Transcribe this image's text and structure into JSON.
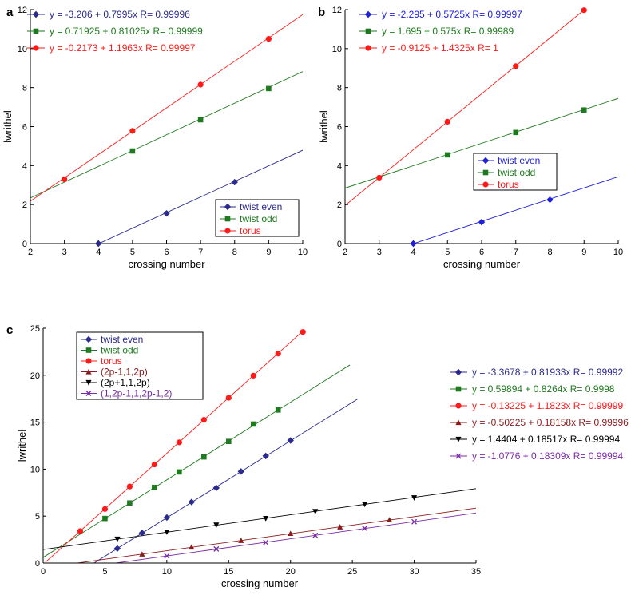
{
  "colors": {
    "twist_even": "#2a2a8f",
    "twist_even_b": "#1f1fd6",
    "twist_odd": "#1e7a1e",
    "torus": "#ff1a1a",
    "p2_1": "#8b1a1a",
    "p2_2": "#000000",
    "p2_3": "#7a2aa6"
  },
  "chart_data": [
    {
      "type": "scatter",
      "panel_label": "a",
      "xlabel": "crossing number",
      "ylabel": "lwrithel",
      "xlim": [
        2,
        10
      ],
      "ylim": [
        0,
        12
      ],
      "xticks": [
        "2",
        "3",
        "4",
        "5",
        "6",
        "7",
        "8",
        "9",
        "10"
      ],
      "yticks": [
        "0",
        "2",
        "4",
        "6",
        "8",
        "10",
        "12"
      ],
      "series": [
        {
          "name": "twist even",
          "color_key": "twist_even",
          "marker": "diamond",
          "x": [
            4,
            6,
            8
          ],
          "y": [
            0,
            1.55,
            3.15
          ],
          "fit": {
            "intercept": -3.206,
            "slope": 0.7995
          },
          "equation": "y = -3.206 + 0.7995x   R= 0.99996"
        },
        {
          "name": "twist odd",
          "color_key": "twist_odd",
          "marker": "square",
          "x": [
            5,
            7,
            9
          ],
          "y": [
            4.75,
            6.35,
            7.95
          ],
          "fit": {
            "intercept": 0.71925,
            "slope": 0.81025
          },
          "equation": "y = 0.71925 + 0.81025x   R= 0.99999"
        },
        {
          "name": "torus",
          "color_key": "torus",
          "marker": "circle",
          "x": [
            3,
            5,
            7,
            9
          ],
          "y": [
            3.3,
            5.78,
            8.15,
            10.5
          ],
          "fit": {
            "intercept": -0.2173,
            "slope": 1.1963
          },
          "equation": "y = -0.2173 + 1.1963x   R= 0.99997"
        }
      ]
    },
    {
      "type": "scatter",
      "panel_label": "b",
      "xlabel": "crossing number",
      "ylabel": "lwrithel",
      "xlim": [
        2,
        10
      ],
      "ylim": [
        0,
        12
      ],
      "xticks": [
        "2",
        "3",
        "4",
        "5",
        "6",
        "7",
        "8",
        "9",
        "10"
      ],
      "yticks": [
        "0",
        "2",
        "4",
        "6",
        "8",
        "10",
        "12"
      ],
      "series": [
        {
          "name": "twist even",
          "color_key": "twist_even_b",
          "marker": "diamond",
          "x": [
            4,
            6,
            8
          ],
          "y": [
            0,
            1.1,
            2.25
          ],
          "fit": {
            "intercept": -2.295,
            "slope": 0.5725
          },
          "equation": "y = -2.295 + 0.5725x   R= 0.99997"
        },
        {
          "name": "twist odd",
          "color_key": "twist_odd",
          "marker": "square",
          "x": [
            5,
            7,
            9
          ],
          "y": [
            4.55,
            5.7,
            6.85
          ],
          "fit": {
            "intercept": 1.695,
            "slope": 0.575
          },
          "equation": "y = 1.695 + 0.575x   R= 0.99989"
        },
        {
          "name": "torus",
          "color_key": "torus",
          "marker": "circle",
          "x": [
            3,
            5,
            7,
            9
          ],
          "y": [
            3.38,
            6.25,
            9.1,
            11.97
          ],
          "fit": {
            "intercept": -0.9125,
            "slope": 1.4325
          },
          "equation": "y = -0.9125 + 1.4325x   R= 1"
        }
      ]
    },
    {
      "type": "scatter",
      "panel_label": "c",
      "xlabel": "crossing number",
      "ylabel": "lwrithel",
      "xlim": [
        0,
        35
      ],
      "ylim": [
        0,
        25
      ],
      "xticks": [
        "0",
        "5",
        "10",
        "15",
        "20",
        "25",
        "30",
        "35"
      ],
      "yticks": [
        "0",
        "5",
        "10",
        "15",
        "20",
        "25"
      ],
      "series": [
        {
          "name": "twist even",
          "color_key": "twist_even",
          "marker": "diamond",
          "x": [
            6,
            8,
            10,
            12,
            14,
            16,
            18,
            20
          ],
          "y": [
            1.55,
            3.2,
            4.85,
            6.5,
            8.0,
            9.75,
            11.4,
            13.05
          ],
          "fit": {
            "intercept": -3.3678,
            "slope": 0.81933
          },
          "fit_range": [
            4.1,
            25.4
          ],
          "equation": "y = -3.3678 + 0.81933x   R= 0.99992"
        },
        {
          "name": "twist odd",
          "color_key": "twist_odd",
          "marker": "square",
          "x": [
            5,
            7,
            9,
            11,
            13,
            15,
            17,
            19
          ],
          "y": [
            4.75,
            6.4,
            8.05,
            9.7,
            11.3,
            12.95,
            14.8,
            16.3
          ],
          "fit": {
            "intercept": 0.59894,
            "slope": 0.8264
          },
          "fit_range": [
            0,
            24.8
          ],
          "equation": "y = 0.59894 + 0.8264x   R= 0.9998"
        },
        {
          "name": "torus",
          "color_key": "torus",
          "marker": "circle",
          "x": [
            3,
            5,
            7,
            9,
            11,
            13,
            15,
            17,
            19,
            21
          ],
          "y": [
            3.4,
            5.75,
            8.15,
            10.5,
            12.85,
            15.25,
            17.6,
            19.95,
            22.3,
            24.6
          ],
          "fit": {
            "intercept": -0.13225,
            "slope": 1.1823
          },
          "fit_range": [
            0.2,
            21
          ],
          "equation": "y = -0.13225 + 1.1823x   R= 0.99999"
        },
        {
          "name": "(2p-1,1,2p)",
          "color_key": "p2_1",
          "marker": "triangle-up",
          "x": [
            8,
            12,
            16,
            20,
            24,
            28
          ],
          "y": [
            0.95,
            1.7,
            2.4,
            3.15,
            3.85,
            4.6
          ],
          "fit": {
            "intercept": -0.50225,
            "slope": 0.18158
          },
          "fit_range": [
            2.8,
            35
          ],
          "equation": "y = -0.50225 + 0.18158x   R= 0.99996"
        },
        {
          "name": "(2p+1,1,2p)",
          "color_key": "p2_2",
          "marker": "triangle-down",
          "x": [
            6,
            10,
            14,
            18,
            22,
            26,
            30
          ],
          "y": [
            2.55,
            3.3,
            4.05,
            4.75,
            5.5,
            6.25,
            6.95
          ],
          "fit": {
            "intercept": 1.4404,
            "slope": 0.18517
          },
          "fit_range": [
            0,
            35
          ],
          "equation": "y = 1.4404 + 0.18517x   R= 0.99994"
        },
        {
          "name": "(1,2p-1,1,2p-1,2)",
          "color_key": "p2_3",
          "marker": "x",
          "x": [
            10,
            14,
            18,
            22,
            26,
            30
          ],
          "y": [
            0.75,
            1.5,
            2.2,
            2.95,
            3.7,
            4.4
          ],
          "fit": {
            "intercept": -1.0776,
            "slope": 0.18309
          },
          "fit_range": [
            5.9,
            35
          ],
          "equation": "y = -1.0776 + 0.18309x   R= 0.99994"
        }
      ]
    }
  ]
}
